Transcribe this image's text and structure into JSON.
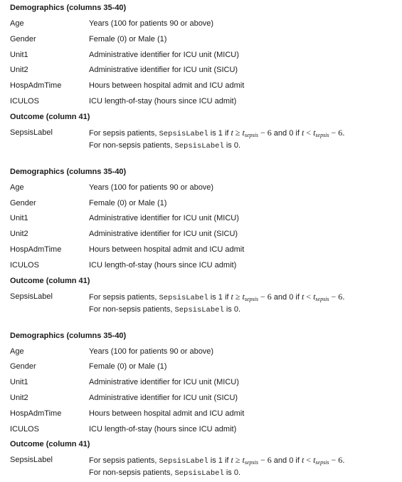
{
  "blocks": [
    {
      "demo_title": "Demographics (columns 35-40)",
      "demo_rows": [
        {
          "key": "Age",
          "desc": "Years (100 for patients 90 or above)"
        },
        {
          "key": "Gender",
          "desc": "Female (0) or Male (1)"
        },
        {
          "key": "Unit1",
          "desc": "Administrative identifier for ICU unit (MICU)"
        },
        {
          "key": "Unit2",
          "desc": "Administrative identifier for ICU unit (SICU)"
        },
        {
          "key": "HospAdmTime",
          "desc": "Hours between hospital admit and ICU admit"
        },
        {
          "key": "ICULOS",
          "desc": "ICU length-of-stay (hours since ICU admit)"
        }
      ],
      "outcome_title": "Outcome (column 41)",
      "outcome": {
        "key": "SepsisLabel",
        "p1": "For sepsis patients, ",
        "code": "SepsisLabel",
        "p2": " is 1 if ",
        "t": "t",
        "ge": " ≥ ",
        "sub": "sepsis",
        "minus": " − 6",
        "p3": " and 0 if ",
        "lt": " < ",
        "end": ".",
        "l2a": "For non-sepsis patients, ",
        "l2b": " is 0."
      }
    },
    {
      "demo_title": "Demographics (columns 35-40)",
      "demo_rows": [
        {
          "key": "Age",
          "desc": "Years (100 for patients 90 or above)"
        },
        {
          "key": "Gender",
          "desc": "Female (0) or Male (1)"
        },
        {
          "key": "Unit1",
          "desc": "Administrative identifier for ICU unit (MICU)"
        },
        {
          "key": "Unit2",
          "desc": "Administrative identifier for ICU unit (SICU)"
        },
        {
          "key": "HospAdmTime",
          "desc": "Hours between hospital admit and ICU admit"
        },
        {
          "key": "ICULOS",
          "desc": "ICU length-of-stay (hours since ICU admit)"
        }
      ],
      "outcome_title": "Outcome (column 41)",
      "outcome": {
        "key": "SepsisLabel",
        "p1": "For sepsis patients, ",
        "code": "SepsisLabel",
        "p2": " is 1 if ",
        "t": "t",
        "ge": " ≥ ",
        "sub": "sepsis",
        "minus": " − 6",
        "p3": " and 0 if ",
        "lt": " < ",
        "end": ".",
        "l2a": "For non-sepsis patients, ",
        "l2b": " is 0."
      }
    },
    {
      "demo_title": "Demographics (columns 35-40)",
      "demo_rows": [
        {
          "key": "Age",
          "desc": "Years (100 for patients 90 or above)"
        },
        {
          "key": "Gender",
          "desc": "Female (0) or Male (1)"
        },
        {
          "key": "Unit1",
          "desc": "Administrative identifier for ICU unit (MICU)"
        },
        {
          "key": "Unit2",
          "desc": "Administrative identifier for ICU unit (SICU)"
        },
        {
          "key": "HospAdmTime",
          "desc": "Hours between hospital admit and ICU admit"
        },
        {
          "key": "ICULOS",
          "desc": "ICU length-of-stay (hours since ICU admit)"
        }
      ],
      "outcome_title": "Outcome (column 41)",
      "outcome": {
        "key": "SepsisLabel",
        "p1": "For sepsis patients, ",
        "code": "SepsisLabel",
        "p2": " is 1 if ",
        "t": "t",
        "ge": " ≥ ",
        "sub": "sepsis",
        "minus": " − 6",
        "p3": " and 0 if ",
        "lt": " < ",
        "end": ".",
        "l2a": "For non-sepsis patients, ",
        "l2b": " is 0."
      }
    }
  ]
}
